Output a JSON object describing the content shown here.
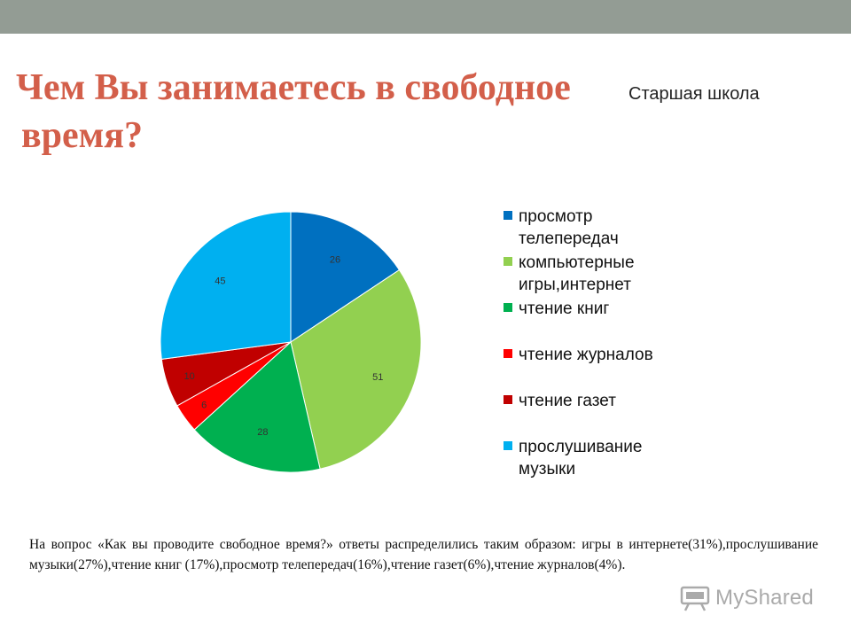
{
  "title": {
    "line1": "Чем Вы занимаетесь в свободное",
    "line2": "время?",
    "color": "#d35f4a"
  },
  "subtitle": "Старшая школа",
  "chart_data": {
    "type": "pie",
    "title": "",
    "legend_position": "right",
    "slices": [
      {
        "label": "просмотр телепередач",
        "value": 26,
        "color": "#0070c0"
      },
      {
        "label": "компьютерные игры,интернет",
        "value": 51,
        "color": "#92d050"
      },
      {
        "label": "чтение книг",
        "value": 28,
        "color": "#00b050"
      },
      {
        "label": "чтение журналов",
        "value": 6,
        "color": "#ff0000"
      },
      {
        "label": "чтение газет",
        "value": 10,
        "color": "#c00000"
      },
      {
        "label": "прослушивание музыки",
        "value": 45,
        "color": "#00b0f0"
      }
    ]
  },
  "legend": [
    {
      "line1": "просмотр",
      "line2": "телепередач"
    },
    {
      "line1": "компьютерные",
      "line2": "игры,интернет"
    },
    {
      "line1": "чтение книг",
      "line2": ""
    },
    {
      "line1": "чтение журналов",
      "line2": ""
    },
    {
      "line1": "чтение газет",
      "line2": ""
    },
    {
      "line1": "прослушивание",
      "line2": "музыки"
    }
  ],
  "description": "На вопрос «Как вы проводите свободное время?» ответы распределились таким образом: игры в интернете(31%),прослушивание музыки(27%),чтение книг (17%),просмотр телепередач(16%),чтение газет(6%),чтение журналов(4%).",
  "logo": {
    "text": "MyShared",
    "icon": "presentation-board-icon"
  }
}
